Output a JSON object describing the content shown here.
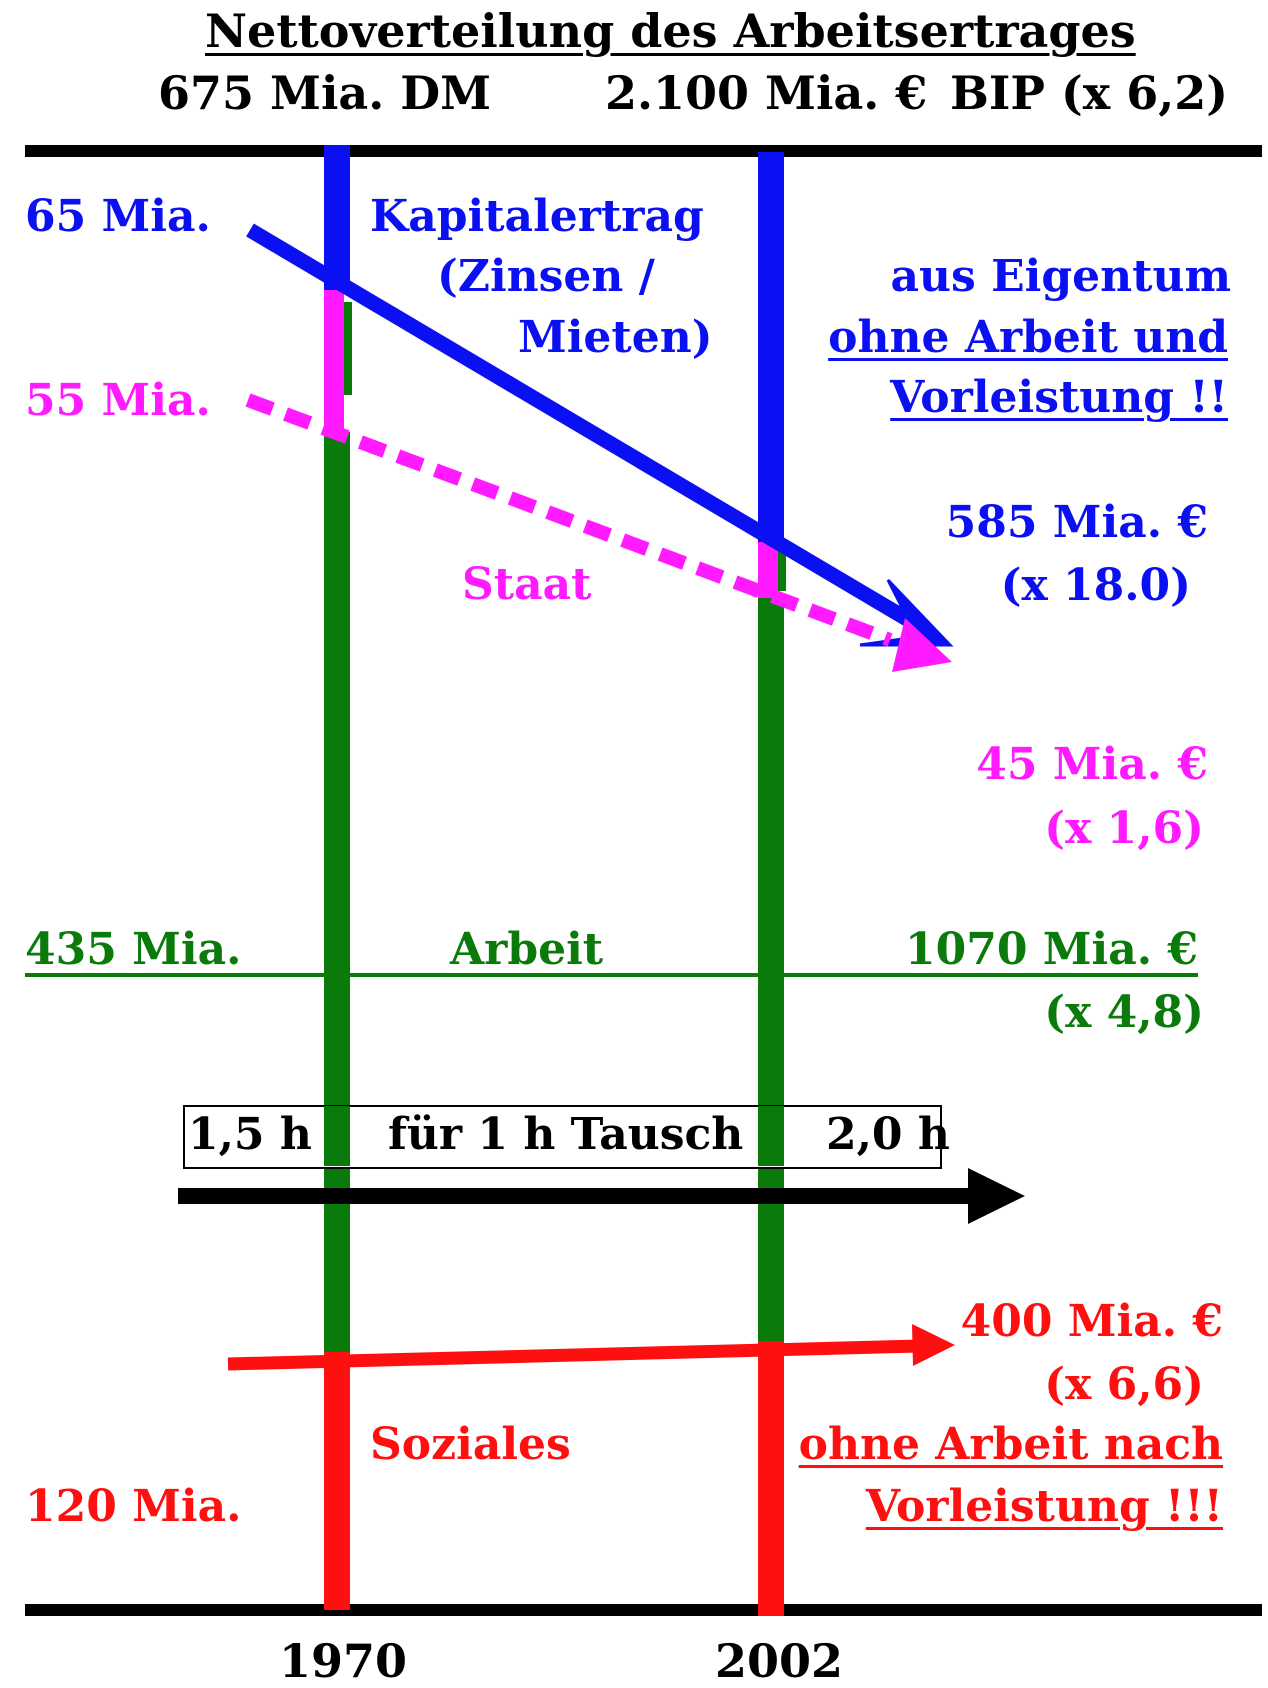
{
  "title": "Nettoverteilung des Arbeitsertrages",
  "header": {
    "left": "675 Mia. DM",
    "middle": "2.100 Mia. €",
    "right": "BIP  (x 6,2)"
  },
  "years": {
    "a": "1970",
    "b": "2002"
  },
  "kapital": {
    "left_value": "65 Mia.",
    "label1": "Kapitalertrag",
    "label2": "(Zinsen /",
    "label3": "Mieten)",
    "note1": "aus Eigentum",
    "note2": "ohne Arbeit und",
    "note3": "Vorleistung !!",
    "right_value": "585 Mia. €",
    "factor": "(x 18.0)"
  },
  "staat": {
    "left_value": "55 Mia.",
    "label": "Staat",
    "right_value": "45 Mia. €",
    "factor": "(x  1,6)"
  },
  "arbeit": {
    "left_value": "435 Mia.",
    "label": "Arbeit",
    "right_value": "1070 Mia. €",
    "factor": "(x  4,8)"
  },
  "tausch": {
    "left": "1,5 h",
    "middle": "für 1 h Tausch",
    "right": "2,0 h"
  },
  "soziales": {
    "left_value": "120 Mia.",
    "label": "Soziales",
    "right_value": "400 Mia. €",
    "factor": "(x   6,6)",
    "note1": "ohne Arbeit nach",
    "note2": "Vorleistung !!!"
  },
  "colors": {
    "kapital": "#0b10f2",
    "staat": "#ff1aff",
    "arbeit": "#0a7a0a",
    "soziales": "#ff1010",
    "axis": "#000000"
  }
}
